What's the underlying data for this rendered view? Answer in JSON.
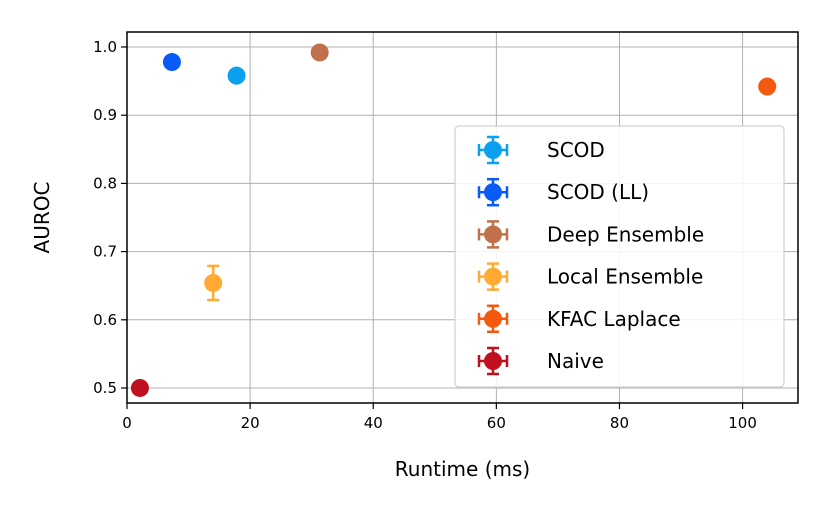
{
  "chart_data": {
    "type": "scatter",
    "title": "",
    "xlabel": "Runtime (ms)",
    "ylabel": "AUROC",
    "xlim": [
      0,
      109
    ],
    "ylim": [
      0.478,
      1.022
    ],
    "xticks": [
      0,
      20,
      40,
      60,
      80,
      100
    ],
    "yticks": [
      0.5,
      0.6,
      0.7,
      0.8,
      0.9,
      1.0
    ],
    "xtick_labels": [
      "0",
      "20",
      "40",
      "60",
      "80",
      "100"
    ],
    "ytick_labels": [
      "0.5",
      "0.6",
      "0.7",
      "0.8",
      "0.9",
      "1.0"
    ],
    "grid": true,
    "legend_position": "lower-right",
    "series": [
      {
        "name": "SCOD",
        "color": "#0aa0f0",
        "x": 17.8,
        "y": 0.958,
        "yerr": 0.004
      },
      {
        "name": "SCOD (LL)",
        "color": "#0a5af5",
        "x": 7.3,
        "y": 0.978,
        "yerr": 0.003
      },
      {
        "name": "Deep Ensemble",
        "color": "#c0704a",
        "x": 31.3,
        "y": 0.992,
        "yerr": 0.003
      },
      {
        "name": "Local Ensemble",
        "color": "#ffaa33",
        "x": 14.0,
        "y": 0.654,
        "yerr": 0.025
      },
      {
        "name": "KFAC Laplace",
        "color": "#f5580f",
        "x": 104.0,
        "y": 0.942,
        "yerr": 0.004
      },
      {
        "name": "Naive",
        "color": "#c0101f",
        "x": 2.1,
        "y": 0.5,
        "yerr": 0.002
      }
    ]
  }
}
